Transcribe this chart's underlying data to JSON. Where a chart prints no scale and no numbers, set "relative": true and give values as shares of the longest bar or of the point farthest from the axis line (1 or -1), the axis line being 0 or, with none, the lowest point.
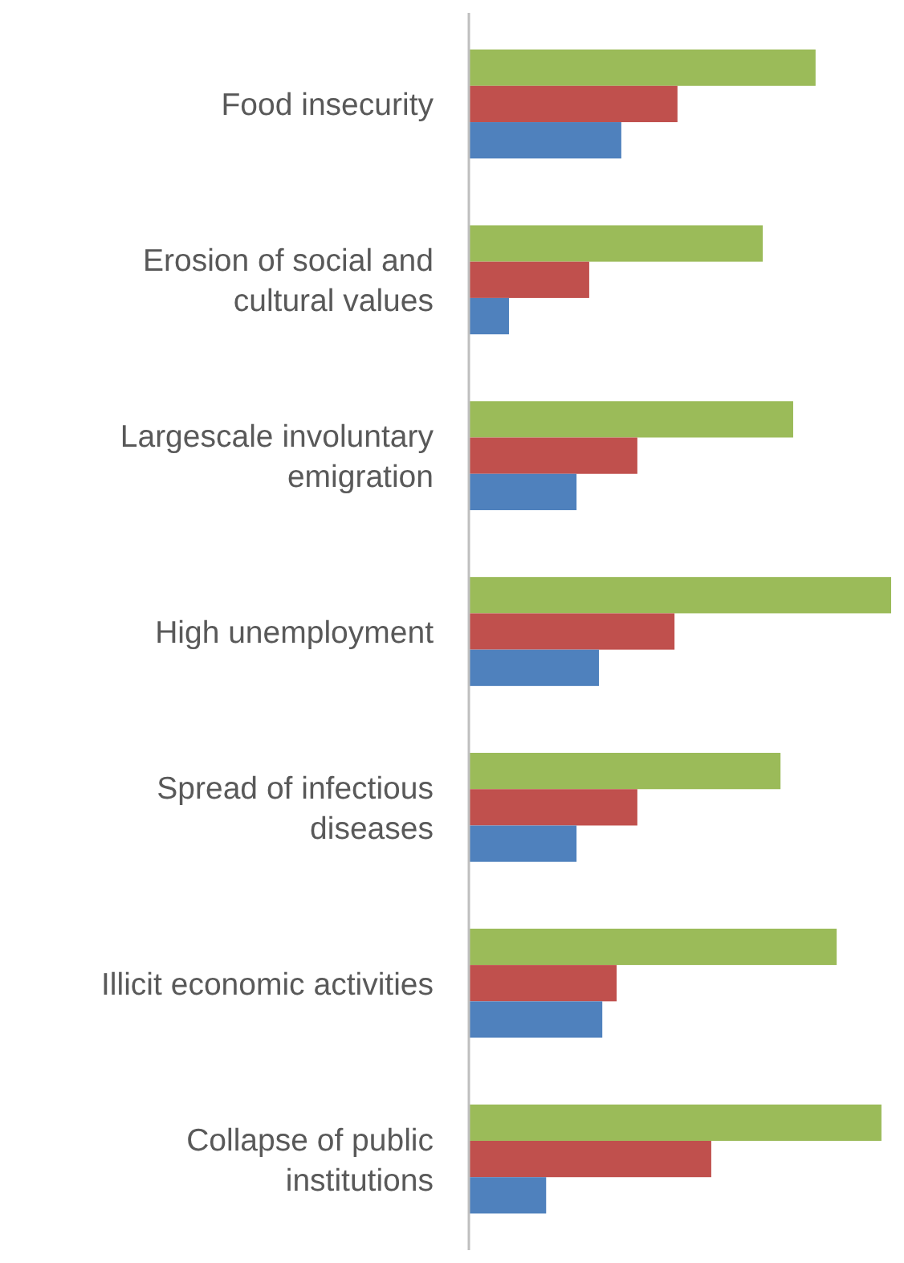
{
  "chart_data": {
    "type": "bar",
    "orientation": "horizontal",
    "relative": true,
    "categories": [
      "Food insecurity",
      "Erosion of social and cultural values",
      "Largescale involuntary emigration",
      "High unemployment",
      "Spread of infectious diseases",
      "Illicit economic activities",
      "Collapse of public institutions"
    ],
    "series": [
      {
        "color": "#9bbb59",
        "values": [
          0.821,
          0.696,
          0.768,
          1,
          0.738,
          0.871,
          0.977
        ]
      },
      {
        "color": "#c0504d",
        "values": [
          0.494,
          0.285,
          0.399,
          0.487,
          0.399,
          0.35,
          0.574
        ]
      },
      {
        "color": "#4f81bd",
        "values": [
          0.361,
          0.095,
          0.255,
          0.308,
          0.255,
          0.316,
          0.183
        ]
      }
    ]
  }
}
